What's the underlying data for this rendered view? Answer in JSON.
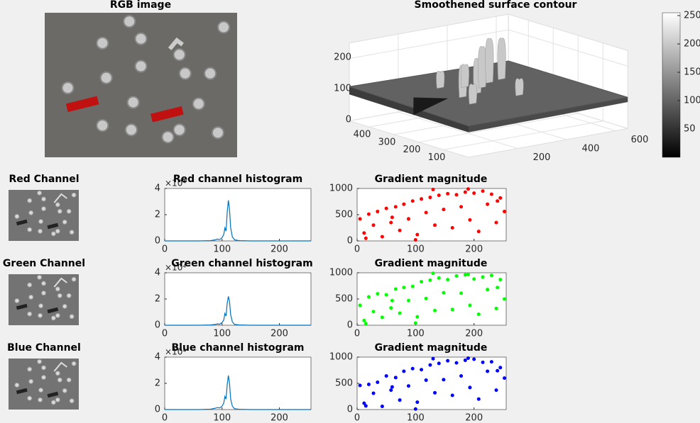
{
  "chart_data": [
    {
      "type": "image",
      "title": "RGB image"
    },
    {
      "type": "surface",
      "title": "Smoothened surface contour",
      "colormap": "gray",
      "xlim": [
        0,
        650
      ],
      "ylim": [
        0,
        480
      ],
      "zlim": [
        0,
        250
      ],
      "xticks": [
        200,
        400,
        600
      ],
      "yticks": [
        100,
        200,
        300,
        400
      ],
      "zticks": [
        0,
        100,
        200
      ],
      "clim": [
        0,
        255
      ],
      "colorbar_ticks": [
        50,
        100,
        150,
        200,
        250
      ]
    },
    {
      "type": "image",
      "title": "Red Channel"
    },
    {
      "type": "line",
      "title": "Red channel histogram",
      "y_offset_label": "×10⁴",
      "color": "#0072bd",
      "x": [
        0,
        60,
        80,
        88,
        92,
        96,
        100,
        103,
        105,
        107,
        109,
        111,
        113,
        115,
        118,
        122,
        130,
        150,
        200,
        255
      ],
      "values": [
        0,
        0,
        0.02,
        0.08,
        0.14,
        0.1,
        0.25,
        0.5,
        1.0,
        0.75,
        2.2,
        3.1,
        2.4,
        1.0,
        0.3,
        0.08,
        0.02,
        0,
        0,
        0
      ],
      "xlim": [
        0,
        255
      ],
      "ylim": [
        0,
        4
      ],
      "xticks": [
        0,
        100,
        200
      ],
      "yticks": [
        0,
        2,
        4
      ]
    },
    {
      "type": "scatter",
      "title": "Gradient magnitude",
      "color": "#ff0000",
      "x": [
        5,
        12,
        20,
        28,
        35,
        43,
        50,
        58,
        66,
        73,
        80,
        88,
        95,
        103,
        110,
        118,
        125,
        133,
        140,
        148,
        155,
        163,
        170,
        178,
        185,
        193,
        200,
        208,
        215,
        223,
        230,
        238,
        245,
        252,
        60,
        130,
        190,
        240,
        15,
        100
      ],
      "values": [
        420,
        150,
        510,
        300,
        560,
        80,
        620,
        350,
        650,
        200,
        700,
        420,
        760,
        120,
        800,
        540,
        830,
        300,
        870,
        600,
        900,
        250,
        880,
        650,
        930,
        400,
        910,
        180,
        950,
        700,
        890,
        350,
        820,
        560,
        450,
        980,
        990,
        760,
        50,
        20
      ],
      "xlim": [
        0,
        255
      ],
      "ylim": [
        0,
        1000
      ],
      "xticks": [
        0,
        100,
        200
      ],
      "yticks": [
        0,
        500,
        1000
      ]
    },
    {
      "type": "image",
      "title": "Green Channel"
    },
    {
      "type": "line",
      "title": "Green channel histogram",
      "y_offset_label": "×10⁴",
      "color": "#0072bd",
      "x": [
        0,
        60,
        80,
        88,
        92,
        96,
        100,
        103,
        105,
        107,
        109,
        111,
        113,
        115,
        118,
        122,
        130,
        150,
        200,
        255
      ],
      "values": [
        0,
        0,
        0.02,
        0.06,
        0.1,
        0.08,
        0.2,
        0.4,
        0.9,
        0.7,
        1.7,
        2.2,
        1.8,
        0.8,
        0.25,
        0.06,
        0.02,
        0,
        0,
        0
      ],
      "xlim": [
        0,
        255
      ],
      "ylim": [
        0,
        4
      ],
      "xticks": [
        0,
        100,
        200
      ],
      "yticks": [
        0,
        2,
        4
      ]
    },
    {
      "type": "scatter",
      "title": "Gradient magnitude",
      "color": "#00ff00",
      "x": [
        5,
        12,
        20,
        28,
        35,
        43,
        50,
        58,
        66,
        73,
        80,
        88,
        95,
        103,
        110,
        118,
        125,
        133,
        140,
        148,
        155,
        163,
        170,
        178,
        185,
        193,
        200,
        208,
        215,
        223,
        230,
        238,
        245,
        252,
        60,
        130,
        190,
        240,
        15,
        100
      ],
      "values": [
        380,
        90,
        540,
        260,
        600,
        150,
        580,
        330,
        690,
        230,
        720,
        470,
        740,
        160,
        830,
        510,
        860,
        280,
        900,
        620,
        870,
        300,
        940,
        610,
        960,
        380,
        880,
        210,
        920,
        680,
        950,
        320,
        870,
        500,
        470,
        990,
        970,
        720,
        30,
        40
      ],
      "xlim": [
        0,
        255
      ],
      "ylim": [
        0,
        1000
      ],
      "xticks": [
        0,
        100,
        200
      ],
      "yticks": [
        0,
        500,
        1000
      ]
    },
    {
      "type": "image",
      "title": "Blue Channel"
    },
    {
      "type": "line",
      "title": "Blue channel histogram",
      "y_offset_label": "×10⁴",
      "color": "#0072bd",
      "x": [
        0,
        60,
        80,
        88,
        92,
        96,
        100,
        103,
        105,
        107,
        109,
        111,
        113,
        115,
        118,
        122,
        130,
        150,
        200,
        255
      ],
      "values": [
        0,
        0,
        0.03,
        0.1,
        0.15,
        0.12,
        0.25,
        0.5,
        1.0,
        0.8,
        1.9,
        2.6,
        2.0,
        0.8,
        0.25,
        0.06,
        0.02,
        0,
        0,
        0
      ],
      "xlim": [
        0,
        255
      ],
      "ylim": [
        0,
        4
      ],
      "xticks": [
        0,
        100,
        200
      ],
      "yticks": [
        0,
        2,
        4
      ]
    },
    {
      "type": "scatter",
      "title": "Gradient magnitude",
      "color": "#0000ff",
      "x": [
        5,
        12,
        20,
        28,
        35,
        43,
        50,
        58,
        66,
        73,
        80,
        88,
        95,
        103,
        110,
        118,
        125,
        133,
        140,
        148,
        155,
        163,
        170,
        178,
        185,
        193,
        200,
        208,
        215,
        223,
        230,
        238,
        245,
        252,
        60,
        130,
        190,
        240,
        15,
        100
      ],
      "values": [
        460,
        120,
        480,
        310,
        520,
        60,
        640,
        370,
        610,
        180,
        730,
        450,
        780,
        140,
        760,
        560,
        850,
        320,
        880,
        570,
        930,
        270,
        890,
        640,
        940,
        420,
        960,
        200,
        900,
        730,
        910,
        370,
        800,
        600,
        430,
        970,
        980,
        740,
        70,
        10
      ],
      "xlim": [
        0,
        255
      ],
      "ylim": [
        0,
        1000
      ],
      "xticks": [
        0,
        100,
        200
      ],
      "yticks": [
        0,
        500,
        1000
      ]
    }
  ]
}
